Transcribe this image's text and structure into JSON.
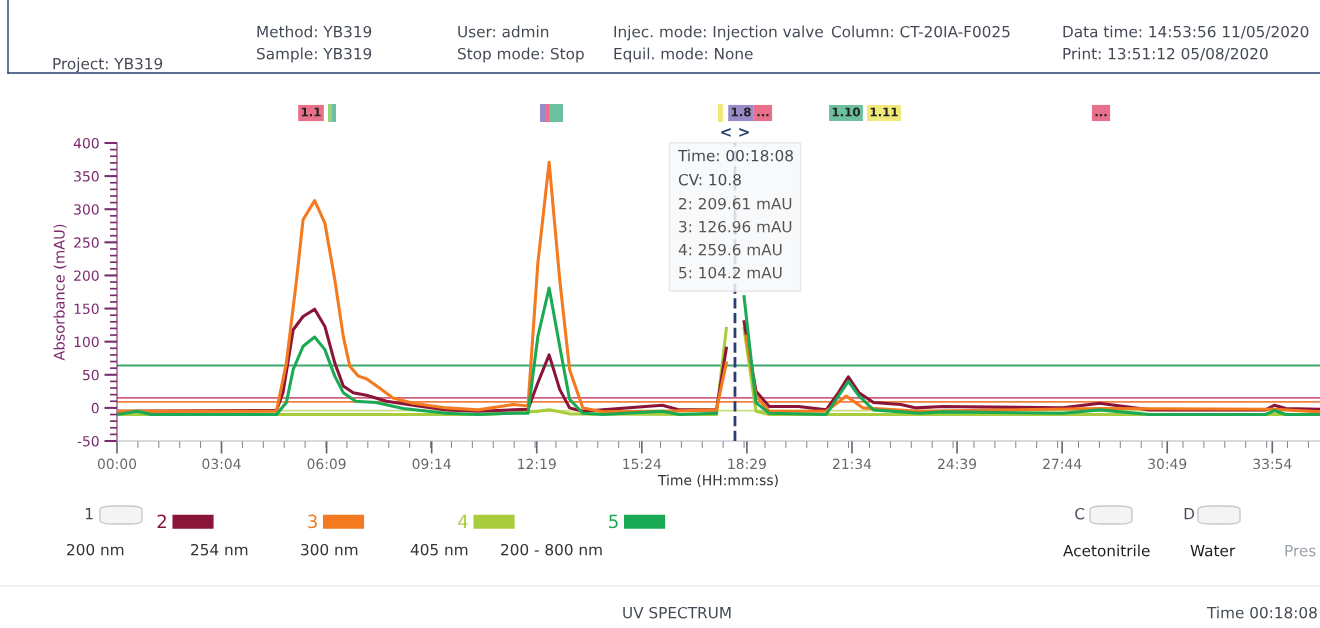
{
  "chart_data": {
    "type": "line",
    "xlabel": "Time (HH:mm:ss)",
    "ylabel": "Absorbance (mAU)",
    "xlim": [
      0,
      35.3
    ],
    "ylim": [
      -50,
      400
    ],
    "xticks": [
      {
        "value": 0,
        "label": "00:00"
      },
      {
        "value": 3.0667,
        "label": "03:04"
      },
      {
        "value": 6.15,
        "label": "06:09"
      },
      {
        "value": 9.2333,
        "label": "09:14"
      },
      {
        "value": 12.3167,
        "label": "12:19"
      },
      {
        "value": 15.4,
        "label": "15:24"
      },
      {
        "value": 18.4833,
        "label": "18:29"
      },
      {
        "value": 21.5667,
        "label": "21:34"
      },
      {
        "value": 24.65,
        "label": "24:39"
      },
      {
        "value": 27.7333,
        "label": "27:44"
      },
      {
        "value": 30.8167,
        "label": "30:49"
      },
      {
        "value": 33.9,
        "label": "33:54"
      }
    ],
    "yticks": [
      -50,
      0,
      50,
      100,
      150,
      200,
      250,
      300,
      350,
      400
    ],
    "grid": false,
    "legend": "bottom",
    "marker": "none",
    "line_style": "solid",
    "series": [
      {
        "name": "4",
        "color": "#a8cc3c",
        "x": [
          0,
          4.68,
          10.6,
          11.62,
          12.35,
          12.68,
          12.99,
          13.28,
          17.59,
          17.88,
          18.13,
          18.4,
          18.75,
          19.14,
          35.3
        ],
        "values": [
          -10,
          -10,
          -10,
          -8,
          -5,
          -3,
          -6,
          -9,
          -10,
          120,
          null,
          120,
          -5,
          -10,
          -10
        ]
      },
      {
        "name": "2",
        "color": "#8b1538",
        "x": [
          0,
          4.68,
          4.87,
          5.17,
          5.46,
          5.8,
          6.1,
          6.39,
          6.64,
          6.93,
          7.32,
          7.91,
          8.69,
          9.67,
          10.6,
          11.62,
          12.06,
          12.35,
          12.68,
          12.99,
          13.28,
          13.67,
          16.0,
          16.5,
          17.59,
          17.88,
          18.13,
          18.4,
          18.75,
          19.14,
          20.0,
          20.81,
          21.17,
          21.46,
          21.77,
          22.2,
          23.0,
          23.45,
          24.23,
          27.75,
          28.83,
          30.3,
          33.7,
          33.96,
          34.3,
          35.3
        ],
        "values": [
          -5,
          -4,
          23,
          118,
          138,
          149,
          123,
          68,
          33,
          23,
          19,
          10,
          4,
          -3,
          -5,
          -3,
          -2,
          38,
          80,
          28,
          0,
          -5,
          4,
          -3,
          -3,
          90,
          null,
          130,
          25,
          2,
          2,
          -3,
          23,
          47,
          23,
          8,
          5,
          0,
          2,
          0,
          7,
          -3,
          -3,
          4,
          -1,
          -2
        ]
      },
      {
        "name": "3",
        "color": "#f47a20",
        "x": [
          0,
          4.68,
          4.97,
          5.27,
          5.46,
          5.8,
          6.1,
          6.39,
          6.64,
          6.83,
          7.08,
          7.32,
          7.62,
          8.1,
          8.69,
          9.67,
          10.6,
          11.62,
          12.06,
          12.35,
          12.68,
          12.99,
          13.28,
          13.67,
          14.26,
          16.02,
          17.59,
          17.88,
          18.17,
          18.46,
          18.75,
          19.14,
          20.81,
          21.4,
          21.89,
          23.55,
          28.83,
          33.96,
          35.3
        ],
        "values": [
          -5,
          -5,
          68,
          194,
          284,
          313,
          279,
          194,
          108,
          63,
          48,
          44,
          33,
          15,
          7,
          0,
          -3,
          5,
          3,
          219,
          371,
          194,
          58,
          0,
          -6,
          -5,
          -3,
          68,
          null,
          108,
          18,
          -5,
          -5,
          18,
          0,
          -5,
          -1,
          -2,
          -6
        ]
      },
      {
        "name": "5",
        "color": "#1aaa55",
        "x": [
          0,
          0.6,
          1.0,
          4.68,
          4.97,
          5.17,
          5.46,
          5.8,
          6.1,
          6.39,
          6.64,
          7.0,
          7.6,
          8.4,
          9.67,
          10.6,
          11.62,
          12.06,
          12.35,
          12.68,
          12.99,
          13.28,
          13.67,
          14.26,
          16.0,
          16.5,
          17.59,
          17.88,
          18.13,
          18.4,
          18.75,
          19.14,
          20.81,
          21.17,
          21.46,
          21.77,
          22.2,
          23.55,
          24.23,
          27.75,
          28.83,
          30.3,
          33.7,
          33.96,
          34.3,
          35.3
        ],
        "values": [
          -10,
          -5,
          -10,
          -10,
          8,
          58,
          93,
          107,
          88,
          48,
          23,
          10,
          8,
          -1,
          -8,
          -10,
          -8,
          -8,
          108,
          181,
          93,
          13,
          -8,
          -10,
          -5,
          -10,
          -8,
          null,
          null,
          168,
          8,
          -8,
          -10,
          18,
          40,
          18,
          -3,
          -8,
          -6,
          -8,
          -3,
          -10,
          -10,
          -4,
          -10,
          -10
        ]
      }
    ],
    "ref_lines": [
      {
        "axis": "y",
        "value": 64,
        "color": "#3aa86a"
      },
      {
        "axis": "y",
        "value": 15,
        "color": "#d06080"
      },
      {
        "axis": "y",
        "value": 9,
        "color": "#f08040"
      },
      {
        "axis": "y",
        "value": -4,
        "color": "#c8e080"
      },
      {
        "axis": "x",
        "value": 18.1333,
        "color": "#2c3e70",
        "line_style": "dashed"
      }
    ],
    "annotations": [
      "Project: YB319",
      "Method: YB319",
      "Sample: YB319",
      "User: admin",
      "Stop mode: Stop",
      "Injec. mode: Injection valve",
      "Equil. mode: None",
      "Column: CT-20IA-F0025",
      "Data time: 14:53:56 11/05/2020",
      "Print: 13:51:12 05/08/2020",
      "1.1",
      "1.8",
      "...",
      "1.10",
      "1.11",
      "...",
      "< >",
      "Time: 00:18:08",
      "CV: 10.8",
      "2: 209.61 mAU",
      "3: 126.96 mAU",
      "4: 259.6 mAU",
      "5: 104.2 mAU",
      "1",
      "200 nm",
      "254 nm",
      "300 nm",
      "405 nm",
      "200 - 800 nm",
      "C",
      "D",
      "Acetonitrile",
      "Water",
      "Pres",
      "UV SPECTRUM",
      "Time 00:18:08"
    ]
  }
}
